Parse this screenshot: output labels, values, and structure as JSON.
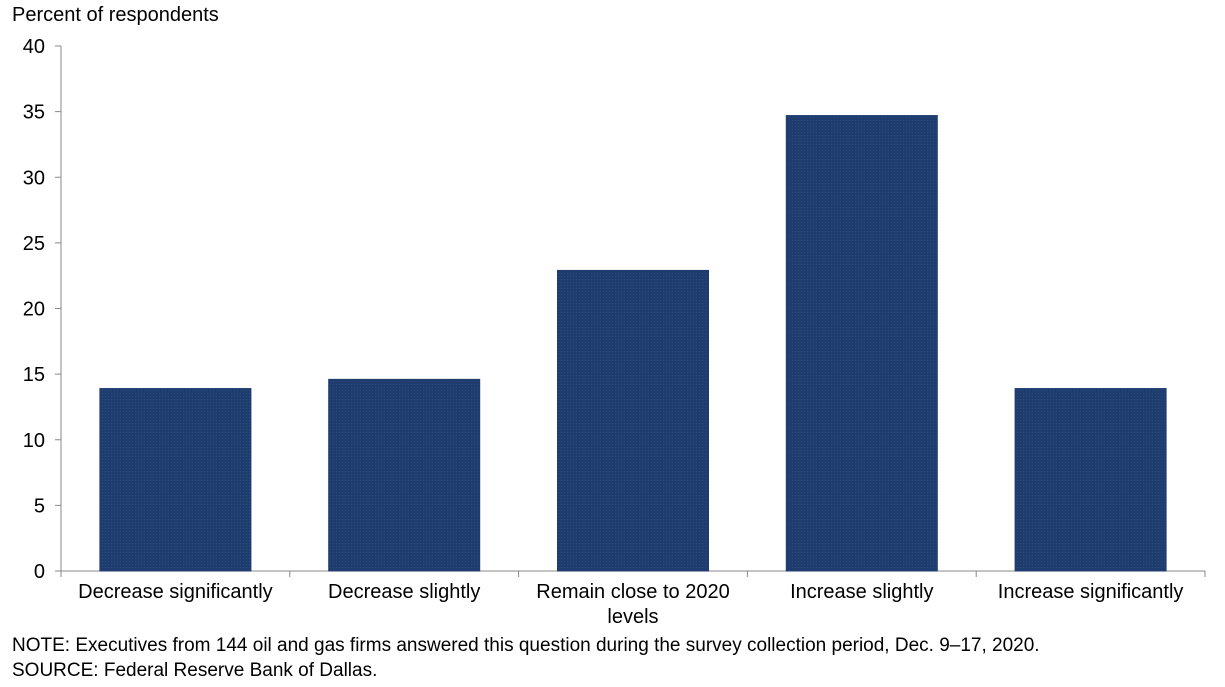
{
  "chart_data": {
    "type": "bar",
    "ylabel": "Percent of respondents",
    "categories": [
      "Decrease significantly",
      "Decrease slightly",
      "Remain close to 2020 levels",
      "Increase slightly",
      "Increase significantly"
    ],
    "category_lines": [
      [
        "Decrease significantly"
      ],
      [
        "Decrease slightly"
      ],
      [
        "Remain close to 2020",
        "levels"
      ],
      [
        "Increase slightly"
      ],
      [
        "Increase significantly"
      ]
    ],
    "values": [
      13.9,
      14.6,
      22.9,
      34.7,
      13.9
    ],
    "ylim": [
      0,
      40
    ],
    "yticks": [
      0,
      5,
      10,
      15,
      20,
      25,
      30,
      35,
      40
    ],
    "grid": false,
    "bar_color": "#1f3c6e"
  },
  "notes": {
    "note": "NOTE: Executives from 144 oil and gas firms answered this question during the survey collection period, Dec. 9–17, 2020.",
    "source": "SOURCE: Federal Reserve Bank of Dallas."
  }
}
